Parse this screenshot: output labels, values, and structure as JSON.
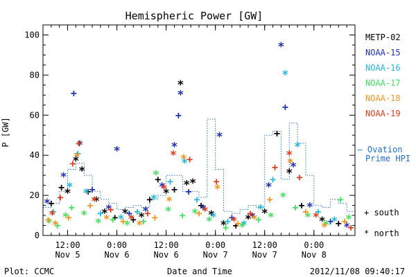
{
  "chart_data": {
    "type": "scatter",
    "title": "Hemispheric Power [GW]",
    "ylabel": "P [GW]",
    "xlabel": "Date and Time",
    "ylim": [
      0,
      105
    ],
    "yticks": [
      0,
      20,
      40,
      60,
      80,
      100
    ],
    "xlim": [
      "2012-11-05T06:00",
      "2012-11-08T10:00"
    ],
    "xticks": [
      {
        "time": "2012-11-05T12:00",
        "label1": "12:00",
        "label2": "Nov 5"
      },
      {
        "time": "2012-11-06T00:00",
        "label1": "0:00",
        "label2": "Nov 6"
      },
      {
        "time": "2012-11-06T12:00",
        "label1": "12:00",
        "label2": "Nov 6"
      },
      {
        "time": "2012-11-07T00:00",
        "label1": "0:00",
        "label2": "Nov 7"
      },
      {
        "time": "2012-11-07T12:00",
        "label1": "12:00",
        "label2": "Nov 7"
      },
      {
        "time": "2012-11-08T00:00",
        "label1": "0:00",
        "label2": "Nov 8"
      }
    ],
    "series": [
      {
        "name": "METP-02",
        "color": "#000000",
        "points": [
          [
            "2012-11-05T08:00",
            16,
            "+"
          ],
          [
            "2012-11-05T10:30",
            24,
            "+"
          ],
          [
            "2012-11-05T12:00",
            22,
            "*"
          ],
          [
            "2012-11-05T14:00",
            38,
            "*"
          ],
          [
            "2012-11-05T15:30",
            33,
            "*"
          ],
          [
            "2012-11-05T17:00",
            22,
            "+"
          ],
          [
            "2012-11-05T19:00",
            18,
            "*"
          ],
          [
            "2012-11-05T21:00",
            12,
            "*"
          ],
          [
            "2012-11-05T23:30",
            9,
            "+"
          ],
          [
            "2012-11-06T02:00",
            12,
            "*"
          ],
          [
            "2012-11-06T04:00",
            8,
            "+"
          ],
          [
            "2012-11-06T06:00",
            10,
            "*"
          ],
          [
            "2012-11-06T08:00",
            18,
            "+"
          ],
          [
            "2012-11-06T10:00",
            28,
            "+"
          ],
          [
            "2012-11-06T12:00",
            22,
            "*"
          ],
          [
            "2012-11-06T14:00",
            23,
            "+"
          ],
          [
            "2012-11-06T15:30",
            76,
            "*"
          ],
          [
            "2012-11-06T17:00",
            26,
            "*"
          ],
          [
            "2012-11-06T18:30",
            27,
            "*"
          ],
          [
            "2012-11-06T20:30",
            15,
            "+"
          ],
          [
            "2012-11-06T23:00",
            11,
            "*"
          ],
          [
            "2012-11-07T02:00",
            6,
            "*"
          ],
          [
            "2012-11-07T05:00",
            5,
            "+"
          ],
          [
            "2012-11-07T08:00",
            9,
            "*"
          ],
          [
            "2012-11-07T12:00",
            12,
            "*"
          ],
          [
            "2012-11-07T15:00",
            51,
            "+"
          ],
          [
            "2012-11-07T18:00",
            32,
            "*"
          ],
          [
            "2012-11-07T21:00",
            15,
            "+"
          ],
          [
            "2012-11-08T02:00",
            8,
            "*"
          ],
          [
            "2012-11-08T06:00",
            6,
            "+"
          ]
        ]
      },
      {
        "name": "NOAA-15",
        "color": "#1f2fb0",
        "points": [
          [
            "2012-11-05T07:00",
            17,
            "*"
          ],
          [
            "2012-11-05T11:00",
            30,
            "*"
          ],
          [
            "2012-11-05T13:30",
            71,
            "+"
          ],
          [
            "2012-11-05T15:00",
            46,
            "*"
          ],
          [
            "2012-11-05T18:00",
            23,
            "+"
          ],
          [
            "2012-11-05T22:00",
            14,
            "*"
          ],
          [
            "2012-11-06T00:00",
            43,
            "*"
          ],
          [
            "2012-11-06T03:00",
            11,
            "+"
          ],
          [
            "2012-11-06T07:00",
            13,
            "*"
          ],
          [
            "2012-11-06T11:00",
            25,
            "*"
          ],
          [
            "2012-11-06T14:00",
            45,
            "*"
          ],
          [
            "2012-11-06T15:00",
            60,
            "+"
          ],
          [
            "2012-11-06T15:30",
            71,
            "*"
          ],
          [
            "2012-11-06T17:30",
            22,
            "+"
          ],
          [
            "2012-11-06T21:00",
            14,
            "*"
          ],
          [
            "2012-11-07T01:00",
            50,
            "*"
          ],
          [
            "2012-11-07T04:00",
            9,
            "+"
          ],
          [
            "2012-11-07T09:00",
            10,
            "*"
          ],
          [
            "2012-11-07T13:00",
            25,
            "*"
          ],
          [
            "2012-11-07T16:00",
            95,
            "*"
          ],
          [
            "2012-11-07T17:00",
            64,
            "+"
          ],
          [
            "2012-11-07T19:00",
            35,
            "*"
          ],
          [
            "2012-11-07T23:00",
            15,
            "*"
          ],
          [
            "2012-11-08T04:00",
            7,
            "+"
          ],
          [
            "2012-11-08T08:00",
            5,
            "*"
          ]
        ]
      },
      {
        "name": "NOAA-16",
        "color": "#22b8d8",
        "points": [
          [
            "2012-11-05T08:30",
            12,
            "+"
          ],
          [
            "2012-11-05T12:30",
            25,
            "*"
          ],
          [
            "2012-11-05T14:30",
            41,
            "+"
          ],
          [
            "2012-11-05T16:30",
            22,
            "*"
          ],
          [
            "2012-11-05T20:00",
            11,
            "+"
          ],
          [
            "2012-11-06T01:00",
            9,
            "*"
          ],
          [
            "2012-11-06T05:00",
            12,
            "+"
          ],
          [
            "2012-11-06T09:00",
            19,
            "*"
          ],
          [
            "2012-11-06T13:00",
            27,
            "+"
          ],
          [
            "2012-11-06T16:30",
            37,
            "*"
          ],
          [
            "2012-11-06T19:30",
            18,
            "+"
          ],
          [
            "2012-11-06T23:30",
            10,
            "*"
          ],
          [
            "2012-11-07T03:00",
            7,
            "+"
          ],
          [
            "2012-11-07T07:00",
            6,
            "*"
          ],
          [
            "2012-11-07T11:00",
            14,
            "*"
          ],
          [
            "2012-11-07T14:00",
            28,
            "+"
          ],
          [
            "2012-11-07T17:00",
            81,
            "*"
          ],
          [
            "2012-11-07T20:00",
            45,
            "*"
          ],
          [
            "2012-11-08T01:00",
            12,
            "+"
          ],
          [
            "2012-11-08T05:00",
            8,
            "*"
          ]
        ]
      },
      {
        "name": "NOAA-17",
        "color": "#40e060",
        "points": [
          [
            "2012-11-05T07:30",
            7,
            "*"
          ],
          [
            "2012-11-05T09:30",
            5,
            "+"
          ],
          [
            "2012-11-05T11:30",
            10,
            "*"
          ],
          [
            "2012-11-05T13:00",
            14,
            "+"
          ],
          [
            "2012-11-05T16:00",
            11,
            "*"
          ],
          [
            "2012-11-05T19:30",
            7,
            "*"
          ],
          [
            "2012-11-05T23:00",
            8,
            "+"
          ],
          [
            "2012-11-06T02:30",
            6,
            "*"
          ],
          [
            "2012-11-06T06:30",
            7,
            "+"
          ],
          [
            "2012-11-06T09:30",
            31,
            "*"
          ],
          [
            "2012-11-06T12:30",
            13,
            "*"
          ],
          [
            "2012-11-06T16:00",
            10,
            "+"
          ],
          [
            "2012-11-06T19:00",
            12,
            "*"
          ],
          [
            "2012-11-06T22:30",
            8,
            "*"
          ],
          [
            "2012-11-07T02:30",
            4,
            "+"
          ],
          [
            "2012-11-07T06:30",
            5,
            "*"
          ],
          [
            "2012-11-07T10:30",
            8,
            "+"
          ],
          [
            "2012-11-07T13:30",
            10,
            "*"
          ],
          [
            "2012-11-07T16:30",
            20,
            "*"
          ],
          [
            "2012-11-07T19:30",
            14,
            "+"
          ],
          [
            "2012-11-07T22:30",
            10,
            "*"
          ],
          [
            "2012-11-08T03:00",
            6,
            "*"
          ],
          [
            "2012-11-08T06:30",
            18,
            "+"
          ],
          [
            "2012-11-08T08:30",
            9,
            "*"
          ]
        ]
      },
      {
        "name": "NOAA-18",
        "color": "#f0961e",
        "points": [
          [
            "2012-11-05T07:15",
            8,
            "+"
          ],
          [
            "2012-11-05T09:00",
            6,
            "*"
          ],
          [
            "2012-11-05T12:15",
            9,
            "+"
          ],
          [
            "2012-11-05T14:15",
            40,
            "*"
          ],
          [
            "2012-11-05T17:30",
            15,
            "+"
          ],
          [
            "2012-11-05T21:30",
            9,
            "*"
          ],
          [
            "2012-11-06T01:30",
            7,
            "+"
          ],
          [
            "2012-11-06T05:30",
            6,
            "*"
          ],
          [
            "2012-11-06T09:15",
            9,
            "+"
          ],
          [
            "2012-11-06T12:45",
            18,
            "*"
          ],
          [
            "2012-11-06T16:15",
            39,
            "*"
          ],
          [
            "2012-11-06T20:00",
            11,
            "+"
          ],
          [
            "2012-11-07T00:30",
            24,
            "*"
          ],
          [
            "2012-11-07T05:30",
            6,
            "+"
          ],
          [
            "2012-11-07T09:30",
            9,
            "*"
          ],
          [
            "2012-11-07T13:15",
            18,
            "+"
          ],
          [
            "2012-11-07T18:15",
            37,
            "*"
          ],
          [
            "2012-11-07T22:00",
            12,
            "+"
          ],
          [
            "2012-11-08T02:30",
            5,
            "*"
          ],
          [
            "2012-11-08T07:30",
            7,
            "+"
          ]
        ]
      },
      {
        "name": "NOAA-19",
        "color": "#e03a1a",
        "points": [
          [
            "2012-11-05T08:15",
            11,
            "*"
          ],
          [
            "2012-11-05T10:15",
            19,
            "+"
          ],
          [
            "2012-11-05T13:15",
            36,
            "+"
          ],
          [
            "2012-11-05T14:45",
            46,
            "+"
          ],
          [
            "2012-11-05T18:30",
            18,
            "*"
          ],
          [
            "2012-11-05T22:30",
            13,
            "+"
          ],
          [
            "2012-11-06T03:30",
            9,
            "*"
          ],
          [
            "2012-11-06T07:30",
            11,
            "+"
          ],
          [
            "2012-11-06T11:30",
            24,
            "*"
          ],
          [
            "2012-11-06T13:45",
            41,
            "*"
          ],
          [
            "2012-11-06T17:45",
            38,
            "+"
          ],
          [
            "2012-11-06T21:30",
            13,
            "*"
          ],
          [
            "2012-11-07T00:15",
            27,
            "+"
          ],
          [
            "2012-11-07T04:30",
            8,
            "*"
          ],
          [
            "2012-11-07T08:30",
            11,
            "+"
          ],
          [
            "2012-11-07T14:30",
            34,
            "+"
          ],
          [
            "2012-11-07T18:00",
            41,
            "*"
          ],
          [
            "2012-11-07T20:30",
            29,
            "+"
          ],
          [
            "2012-11-08T00:30",
            10,
            "*"
          ],
          [
            "2012-11-08T09:00",
            4,
            "+"
          ]
        ]
      }
    ],
    "ovation_color": "#1f6fd0",
    "ovation_line": [
      [
        "2012-11-05T06:00",
        14
      ],
      [
        "2012-11-05T08:00",
        16
      ],
      [
        "2012-11-05T10:00",
        22
      ],
      [
        "2012-11-05T12:00",
        33
      ],
      [
        "2012-11-05T14:00",
        36
      ],
      [
        "2012-11-05T16:00",
        30
      ],
      [
        "2012-11-05T18:00",
        22
      ],
      [
        "2012-11-05T20:00",
        18
      ],
      [
        "2012-11-05T22:00",
        16
      ],
      [
        "2012-11-06T00:00",
        13
      ],
      [
        "2012-11-06T02:00",
        14
      ],
      [
        "2012-11-06T04:00",
        15
      ],
      [
        "2012-11-06T06:00",
        14
      ],
      [
        "2012-11-06T08:00",
        18
      ],
      [
        "2012-11-06T10:00",
        20
      ],
      [
        "2012-11-06T12:00",
        30
      ],
      [
        "2012-11-06T14:00",
        30
      ],
      [
        "2012-11-06T16:00",
        22
      ],
      [
        "2012-11-06T18:00",
        22
      ],
      [
        "2012-11-06T20:00",
        19
      ],
      [
        "2012-11-06T22:00",
        58
      ],
      [
        "2012-11-07T00:00",
        33
      ],
      [
        "2012-11-07T02:00",
        12
      ],
      [
        "2012-11-07T04:00",
        11
      ],
      [
        "2012-11-07T06:00",
        13
      ],
      [
        "2012-11-07T08:00",
        15
      ],
      [
        "2012-11-07T10:00",
        14
      ],
      [
        "2012-11-07T12:00",
        50
      ],
      [
        "2012-11-07T14:00",
        52
      ],
      [
        "2012-11-07T16:00",
        28
      ],
      [
        "2012-11-07T18:00",
        56
      ],
      [
        "2012-11-07T20:00",
        46
      ],
      [
        "2012-11-07T22:00",
        30
      ],
      [
        "2012-11-08T00:00",
        15
      ],
      [
        "2012-11-08T02:00",
        14
      ],
      [
        "2012-11-08T04:00",
        18
      ],
      [
        "2012-11-08T06:00",
        16
      ],
      [
        "2012-11-08T08:00",
        12
      ],
      [
        "2012-11-08T10:00",
        10
      ]
    ],
    "ovation_label_line1": "— Ovation",
    "ovation_label_line2": "Prime HPI",
    "symbol_legend": [
      {
        "symbol": "+",
        "label": "south"
      },
      {
        "symbol": "*",
        "label": "north"
      }
    ]
  },
  "footer": {
    "left": "Plot: CCMC",
    "center": "Date and Time",
    "right": "2012/11/08 09:40:17"
  }
}
